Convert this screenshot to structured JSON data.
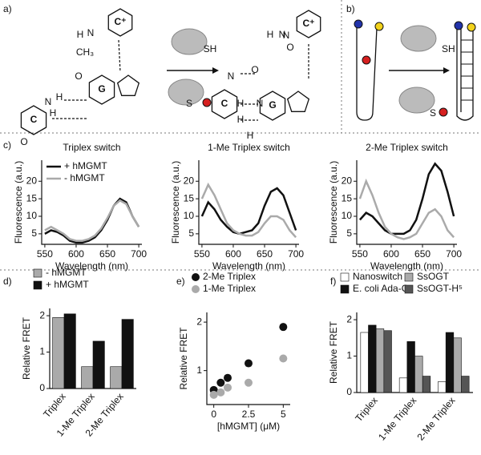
{
  "panel_labels": [
    "a)",
    "b)",
    "c)",
    "d)",
    "e)",
    "f)"
  ],
  "diagram": {
    "a_labels": [
      "C⁺",
      "G",
      "C",
      "CH₃",
      "O",
      "N",
      "H",
      "H",
      "N",
      "H",
      "O",
      "C⁺",
      "G",
      "C",
      "O",
      "H",
      "N",
      "H",
      "N",
      "H",
      "N",
      "H",
      "N",
      "O",
      "SH",
      "S"
    ],
    "b_labels": [
      "SH",
      "S"
    ]
  },
  "chart_data": [
    {
      "type": "line",
      "title": "Triplex switch",
      "x": [
        550,
        560,
        570,
        580,
        590,
        600,
        610,
        620,
        630,
        640,
        650,
        660,
        670,
        680,
        690,
        700
      ],
      "series": [
        {
          "name": "+ hMGMT",
          "color": "#111111",
          "values": [
            5,
            6,
            5.5,
            4.5,
            3,
            2.5,
            2.5,
            3,
            4,
            6,
            9,
            13,
            15,
            14,
            10,
            7
          ]
        },
        {
          "name": "- hMGMT",
          "color": "#aaaaaa",
          "values": [
            6,
            7,
            6,
            5,
            3.5,
            3,
            3,
            3.5,
            4.5,
            6.5,
            9.5,
            13,
            14.5,
            13.5,
            10,
            7
          ]
        }
      ],
      "xlim": [
        545,
        705
      ],
      "xticks": [
        550,
        600,
        650,
        700
      ],
      "ylim": [
        2,
        26
      ],
      "yticks": [
        5,
        10,
        15,
        20
      ],
      "xlabel": "Wavelength (nm)",
      "ylabel": "Fluorescence (a.u.)",
      "legend": "upper left"
    },
    {
      "type": "line",
      "title": "1-Me Triplex switch",
      "x": [
        550,
        560,
        570,
        580,
        590,
        600,
        610,
        620,
        630,
        640,
        650,
        660,
        670,
        680,
        690,
        700
      ],
      "series": [
        {
          "color": "#111111",
          "values": [
            10,
            14,
            12,
            9,
            7,
            5.5,
            5,
            5.5,
            6,
            8,
            13,
            17,
            18,
            16,
            11,
            6
          ]
        },
        {
          "color": "#aaaaaa",
          "values": [
            15,
            19,
            16,
            12,
            8,
            6,
            5,
            4.5,
            4.5,
            5.5,
            8,
            10,
            10,
            9,
            6,
            4
          ]
        }
      ],
      "xlim": [
        545,
        705
      ],
      "xticks": [
        550,
        600,
        650,
        700
      ],
      "ylim": [
        2,
        26
      ],
      "yticks": [
        5,
        10,
        15,
        20
      ],
      "xlabel": "Wavelength (nm)",
      "ylabel": "Fluorescence (a.u.)"
    },
    {
      "type": "line",
      "title": "2-Me Triplex switch",
      "x": [
        550,
        560,
        570,
        580,
        590,
        600,
        610,
        620,
        630,
        640,
        650,
        660,
        670,
        680,
        690,
        700
      ],
      "series": [
        {
          "color": "#111111",
          "values": [
            9,
            11,
            10,
            8,
            6,
            5,
            5,
            5,
            6,
            9,
            15,
            22,
            25,
            23,
            17,
            10
          ]
        },
        {
          "color": "#aaaaaa",
          "values": [
            15,
            20,
            16,
            11,
            7,
            5,
            4,
            3.5,
            4,
            5,
            8,
            11,
            12,
            10,
            6,
            4
          ]
        }
      ],
      "xlim": [
        545,
        705
      ],
      "xticks": [
        550,
        600,
        650,
        700
      ],
      "ylim": [
        2,
        26
      ],
      "yticks": [
        5,
        10,
        15,
        20
      ],
      "xlabel": "Wavelength (nm)",
      "ylabel": "Fluorescence (a.u.)"
    },
    {
      "type": "bar",
      "categories": [
        "Triplex",
        "1-Me Triplex",
        "2-Me Triplex"
      ],
      "series": [
        {
          "name": "- hMGMT",
          "color": "#aaaaaa",
          "values": [
            1.95,
            0.6,
            0.6
          ]
        },
        {
          "name": "+ hMGMT",
          "color": "#111111",
          "values": [
            2.05,
            1.3,
            1.9
          ]
        }
      ],
      "ylim": [
        0,
        2.2
      ],
      "yticks": [
        0,
        1,
        2
      ],
      "ylabel": "Relative FRET",
      "legend": "top"
    },
    {
      "type": "scatter",
      "series": [
        {
          "name": "2-Me Triplex",
          "color": "#111111",
          "x": [
            0,
            0.5,
            1,
            2.5,
            5
          ],
          "values": [
            0.6,
            0.75,
            0.85,
            1.15,
            1.9
          ]
        },
        {
          "name": "1-Me Triplex",
          "color": "#aaaaaa",
          "x": [
            0,
            0.5,
            1,
            2.5,
            5
          ],
          "values": [
            0.5,
            0.55,
            0.65,
            0.75,
            1.25
          ]
        }
      ],
      "xlim": [
        -0.5,
        5.5
      ],
      "xticks": [
        0,
        2.5,
        5
      ],
      "ylim": [
        0.3,
        2.2
      ],
      "yticks": [
        1,
        2
      ],
      "xlabel": "[hMGMT] (μM)",
      "ylabel": "Relative FRET",
      "legend": "top"
    },
    {
      "type": "bar",
      "categories": [
        "Triplex",
        "1-Me Triplex",
        "2-Me Triplex"
      ],
      "series": [
        {
          "name": "Nanoswitch",
          "color": "#ffffff",
          "values": [
            1.65,
            0.4,
            0.3
          ]
        },
        {
          "name": "E. coli Ada-C",
          "color": "#111111",
          "values": [
            1.85,
            1.4,
            1.65
          ]
        },
        {
          "name": "SsOGT",
          "color": "#aaaaaa",
          "values": [
            1.75,
            1.0,
            1.5
          ]
        },
        {
          "name": "SsOGT-H⁵",
          "color": "#555555",
          "values": [
            1.7,
            0.45,
            0.45
          ]
        }
      ],
      "ylim": [
        0,
        2.2
      ],
      "yticks": [
        0,
        1,
        2
      ],
      "ylabel": "Relative FRET",
      "legend": "top"
    }
  ]
}
